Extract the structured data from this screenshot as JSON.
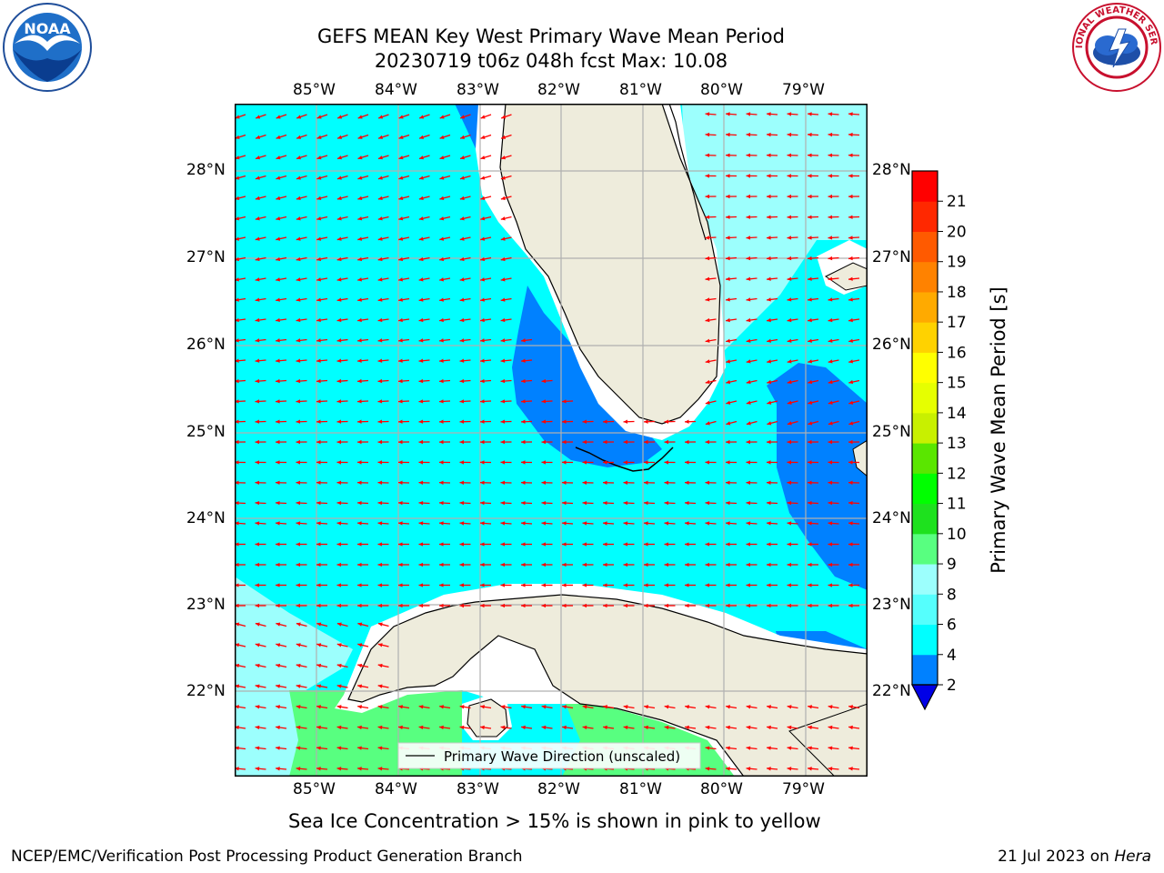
{
  "header": {
    "title_line1": "GEFS MEAN Key West Primary Wave Mean Period",
    "title_line2": "20230719 t06z 048h fcst   Max: 10.08"
  },
  "logos": {
    "left_name": "NOAA",
    "right_name": "NATIONAL WEATHER SERVICE"
  },
  "map": {
    "lon_labels": [
      "85°W",
      "84°W",
      "83°W",
      "82°W",
      "81°W",
      "80°W",
      "79°W"
    ],
    "lat_labels": [
      "28°N",
      "27°N",
      "26°N",
      "25°N",
      "24°N",
      "23°N",
      "22°N"
    ],
    "legend_label": "Primary Wave Direction (unscaled)",
    "colors": {
      "land": "#eeecdc",
      "cyan": "#00ffff",
      "light_cyan": "#9cfffd",
      "blue": "#0081ff",
      "dark_blue": "#0000e6",
      "green": "#58ff80",
      "arrow": "#ff0000",
      "grid": "#b0b0b0"
    }
  },
  "colorbar": {
    "label": "Primary Wave Mean Period [s]",
    "tick_labels": [
      "2",
      "4",
      "6",
      "8",
      "9",
      "10",
      "11",
      "12",
      "13",
      "14",
      "15",
      "16",
      "17",
      "18",
      "19",
      "20",
      "21"
    ],
    "bins": [
      {
        "from": 2,
        "to": 4,
        "color": "#0081ff"
      },
      {
        "from": 4,
        "to": 6,
        "color": "#00ffff"
      },
      {
        "from": 6,
        "to": 8,
        "color": "#55fffd"
      },
      {
        "from": 8,
        "to": 9,
        "color": "#9cfffd"
      },
      {
        "from": 9,
        "to": 10,
        "color": "#58ff80"
      },
      {
        "from": 10,
        "to": 11,
        "color": "#1ee11e"
      },
      {
        "from": 11,
        "to": 12,
        "color": "#00ff00"
      },
      {
        "from": 12,
        "to": 13,
        "color": "#5ae600"
      },
      {
        "from": 13,
        "to": 14,
        "color": "#c8f000"
      },
      {
        "from": 14,
        "to": 15,
        "color": "#e6ff00"
      },
      {
        "from": 15,
        "to": 16,
        "color": "#ffff00"
      },
      {
        "from": 16,
        "to": 17,
        "color": "#ffd200"
      },
      {
        "from": 17,
        "to": 18,
        "color": "#ffaa00"
      },
      {
        "from": 18,
        "to": 19,
        "color": "#ff8200"
      },
      {
        "from": 19,
        "to": 20,
        "color": "#ff5a00"
      },
      {
        "from": 20,
        "to": 21,
        "color": "#ff2800"
      },
      {
        "from": 21,
        "to": 22,
        "color": "#ff0000"
      }
    ],
    "underflow_color": "#0000e6"
  },
  "footer": {
    "note": "Sea Ice Concentration > 15% is shown in pink to yellow",
    "credit": "NCEP/EMC/Verification Post Processing Product Generation Branch",
    "date": "21 Jul 2023 on ",
    "machine": "Hera"
  }
}
